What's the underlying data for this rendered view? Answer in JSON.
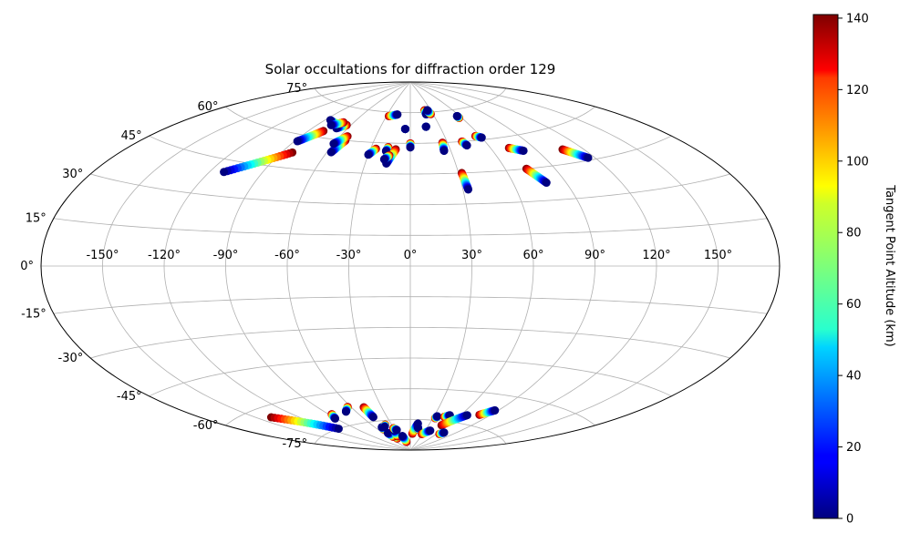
{
  "chart_data": {
    "type": "scatter",
    "projection": "aitoff",
    "title": "Solar occultations for diffraction order 129",
    "xlabel": "",
    "ylabel": "",
    "xlim": [
      -180,
      180
    ],
    "ylim": [
      -90,
      90
    ],
    "grid": true,
    "x_ticks": [
      "-150°",
      "-120°",
      "-90°",
      "-60°",
      "-30°",
      "0°",
      "30°",
      "60°",
      "90°",
      "120°",
      "150°"
    ],
    "x_tick_values": [
      -150,
      -120,
      -90,
      -60,
      -30,
      0,
      30,
      60,
      90,
      120,
      150
    ],
    "y_ticks": [
      "-75°",
      "-60°",
      "-45°",
      "-30°",
      "-15°",
      "0°",
      "15°",
      "30°",
      "45°",
      "60°",
      "75°"
    ],
    "y_tick_values": [
      -75,
      -60,
      -45,
      -30,
      -15,
      0,
      15,
      30,
      45,
      60,
      75
    ],
    "colorbar": {
      "label": "Tangent Point Altitude (km)",
      "range": [
        0,
        141
      ],
      "ticks": [
        "0",
        "20",
        "40",
        "60",
        "80",
        "100",
        "120",
        "140"
      ],
      "tick_values": [
        0,
        20,
        40,
        60,
        80,
        100,
        120,
        140
      ],
      "colormap": "jet"
    },
    "tracks": [
      {
        "lon_start": -83,
        "lat_start": 52,
        "lon_end": -112,
        "lat_end": 40
      },
      {
        "lon_start": -78,
        "lat_start": 63,
        "lon_end": -88,
        "lat_end": 57
      },
      {
        "lon_start": -75,
        "lat_start": 67,
        "lon_end": -85,
        "lat_end": 68
      },
      {
        "lon_start": -64,
        "lat_start": 67,
        "lon_end": -70,
        "lat_end": 65
      },
      {
        "lon_start": -70,
        "lat_start": 68,
        "lon_end": -78,
        "lat_end": 66
      },
      {
        "lon_start": -53,
        "lat_start": 60,
        "lon_end": -57,
        "lat_end": 54
      },
      {
        "lon_start": -54,
        "lat_start": 62,
        "lon_end": -60,
        "lat_end": 58
      },
      {
        "lon_start": -27,
        "lat_start": 73,
        "lon_end": -17,
        "lat_end": 74
      },
      {
        "lon_start": -26,
        "lat_start": 57,
        "lon_end": -30,
        "lat_end": 54
      },
      {
        "lon_start": -17,
        "lat_start": 58,
        "lon_end": -18,
        "lat_end": 56
      },
      {
        "lon_start": -11,
        "lat_start": 57,
        "lon_end": -16,
        "lat_end": 50
      },
      {
        "lon_start": -15,
        "lat_start": 54,
        "lon_end": -18,
        "lat_end": 52
      },
      {
        "lon_start": -5,
        "lat_start": 67,
        "lon_end": -5,
        "lat_end": 67
      },
      {
        "lon_start": 0,
        "lat_start": 60,
        "lon_end": 0,
        "lat_end": 58
      },
      {
        "lon_start": 21,
        "lat_start": 76,
        "lon_end": 21,
        "lat_end": 74
      },
      {
        "lon_start": 16,
        "lat_start": 68,
        "lon_end": 16,
        "lat_end": 68
      },
      {
        "lon_start": 27,
        "lat_start": 74,
        "lon_end": 25,
        "lat_end": 76
      },
      {
        "lon_start": 26,
        "lat_start": 60,
        "lon_end": 25,
        "lat_end": 56
      },
      {
        "lon_start": 32,
        "lat_start": 45,
        "lon_end": 33,
        "lat_end": 37
      },
      {
        "lon_start": 42,
        "lat_start": 60,
        "lon_end": 44,
        "lat_end": 58
      },
      {
        "lon_start": 57,
        "lat_start": 71,
        "lon_end": 57,
        "lat_end": 72
      },
      {
        "lon_start": 56,
        "lat_start": 62,
        "lon_end": 60,
        "lat_end": 61
      },
      {
        "lon_start": 73,
        "lat_start": 55,
        "lon_end": 81,
        "lat_end": 53
      },
      {
        "lon_start": 73,
        "lat_start": 45,
        "lon_end": 79,
        "lat_end": 38
      },
      {
        "lon_start": 107,
        "lat_start": 51,
        "lon_end": 116,
        "lat_end": 46
      },
      {
        "lon_start": -140,
        "lat_start": -64,
        "lon_end": -110,
        "lat_end": -75
      },
      {
        "lon_start": -87,
        "lat_start": -69,
        "lon_end": -91,
        "lat_end": -71
      },
      {
        "lon_start": -63,
        "lat_start": -67,
        "lon_end": -70,
        "lat_end": -69
      },
      {
        "lon_start": -42,
        "lat_start": -84,
        "lon_end": -41,
        "lat_end": -82
      },
      {
        "lon_start": -48,
        "lat_start": -68,
        "lon_end": -47,
        "lat_end": -73
      },
      {
        "lon_start": -50,
        "lat_start": -79,
        "lon_end": -49,
        "lat_end": -78
      },
      {
        "lon_start": -48,
        "lat_start": -83,
        "lon_end": -50,
        "lat_end": -81
      },
      {
        "lon_start": -40,
        "lat_start": -77,
        "lon_end": -44,
        "lat_end": -78
      },
      {
        "lon_start": -35,
        "lat_start": -83,
        "lon_end": -33,
        "lat_end": -80
      },
      {
        "lon_start": -31,
        "lat_start": -79,
        "lon_end": -27,
        "lat_end": -80
      },
      {
        "lon_start": -18,
        "lat_start": -86,
        "lon_end": -22,
        "lat_end": -83
      },
      {
        "lon_start": 5,
        "lat_start": -82,
        "lon_end": 12,
        "lat_end": -77
      },
      {
        "lon_start": 16,
        "lat_start": -80,
        "lon_end": 14,
        "lat_end": -79
      },
      {
        "lon_start": 28,
        "lat_start": -82,
        "lon_end": 40,
        "lat_end": -80
      },
      {
        "lon_start": 33,
        "lat_start": -74,
        "lon_end": 34,
        "lat_end": -73
      },
      {
        "lon_start": 43,
        "lat_start": -73,
        "lon_end": 48,
        "lat_end": -72
      },
      {
        "lon_start": 50,
        "lat_start": -77,
        "lon_end": 67,
        "lat_end": -71
      },
      {
        "lon_start": 66,
        "lat_start": -81,
        "lon_end": 70,
        "lat_end": -80
      },
      {
        "lon_start": 79,
        "lat_start": -70,
        "lon_end": 87,
        "lat_end": -67
      }
    ]
  }
}
